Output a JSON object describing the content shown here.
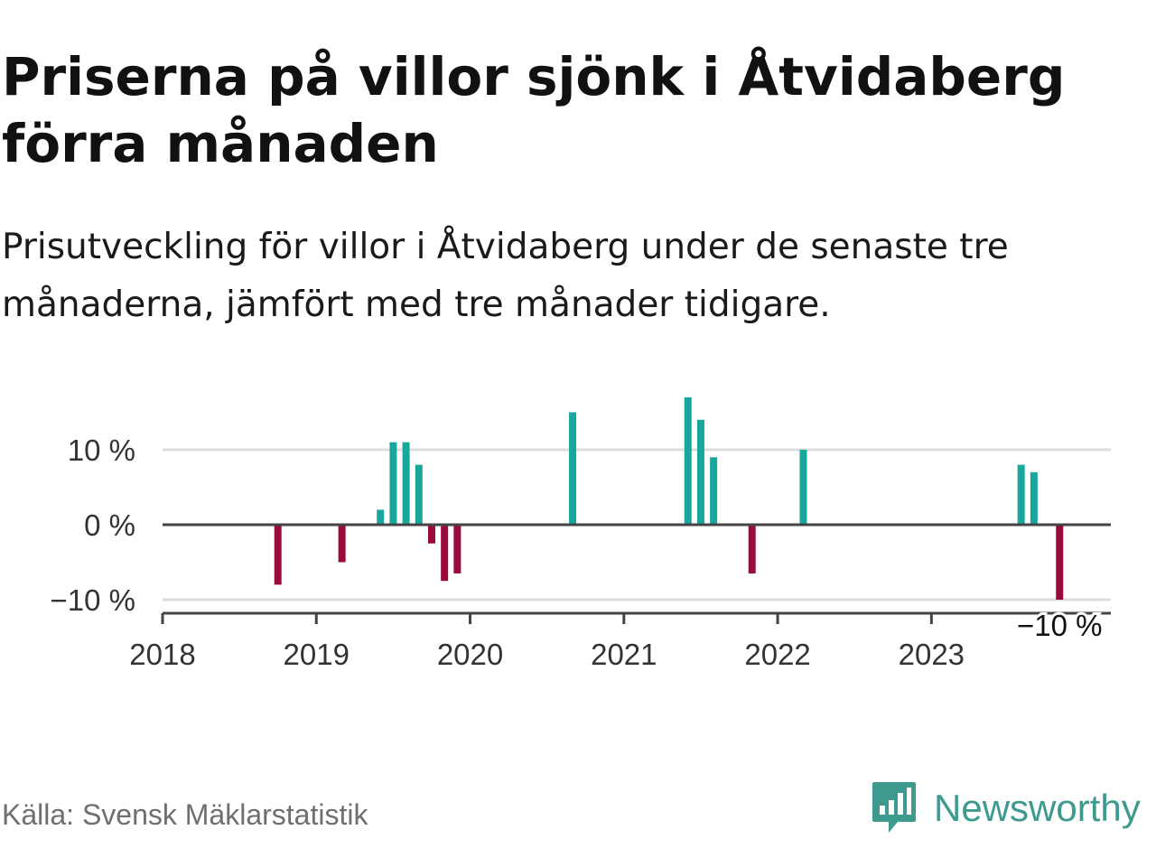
{
  "header": {
    "title": "Priserna på villor sjönk i Åtvidaberg förra månaden",
    "subtitle": "Prisutveckling för villor i Åtvidaberg under de senaste tre månaderna, jämfört med tre månader tidigare."
  },
  "footer": {
    "source": "Källa: Svensk Mäklarstatistik",
    "brand": "Newsworthy",
    "brand_icon": "bar-chart-speech-bubble-icon"
  },
  "colors": {
    "positive": "#1aa79b",
    "negative": "#9b0a3f",
    "grid": "#dddddd",
    "zero_line": "#444444",
    "text": "#333333",
    "brand": "#3e9a8e"
  },
  "chart_data": {
    "type": "bar",
    "x_axis": {
      "type": "date",
      "range": [
        "2018-01",
        "2024-03"
      ],
      "tick_labels": [
        "2018",
        "2019",
        "2020",
        "2021",
        "2022",
        "2023"
      ]
    },
    "y_axis": {
      "range": [
        -12,
        17
      ],
      "ticks": [
        -10,
        0,
        10
      ],
      "tick_labels": [
        "−10 %",
        "0 %",
        "10 %"
      ]
    },
    "grid": true,
    "annotation": {
      "x": "2023-11",
      "text": "−10 %"
    },
    "series": [
      {
        "points": [
          {
            "x": "2018-10",
            "y": -8
          },
          {
            "x": "2019-03",
            "y": -5
          },
          {
            "x": "2019-06",
            "y": 2
          },
          {
            "x": "2019-07",
            "y": 11
          },
          {
            "x": "2019-08",
            "y": 11
          },
          {
            "x": "2019-09",
            "y": 8
          },
          {
            "x": "2019-10",
            "y": -2.5
          },
          {
            "x": "2019-11",
            "y": -7.5
          },
          {
            "x": "2019-12",
            "y": -6.5
          },
          {
            "x": "2020-09",
            "y": 15
          },
          {
            "x": "2021-06",
            "y": 17
          },
          {
            "x": "2021-07",
            "y": 14
          },
          {
            "x": "2021-08",
            "y": 9
          },
          {
            "x": "2021-11",
            "y": -6.5
          },
          {
            "x": "2022-03",
            "y": 10
          },
          {
            "x": "2023-08",
            "y": 8
          },
          {
            "x": "2023-09",
            "y": 7
          },
          {
            "x": "2023-11",
            "y": -10
          }
        ]
      }
    ]
  }
}
